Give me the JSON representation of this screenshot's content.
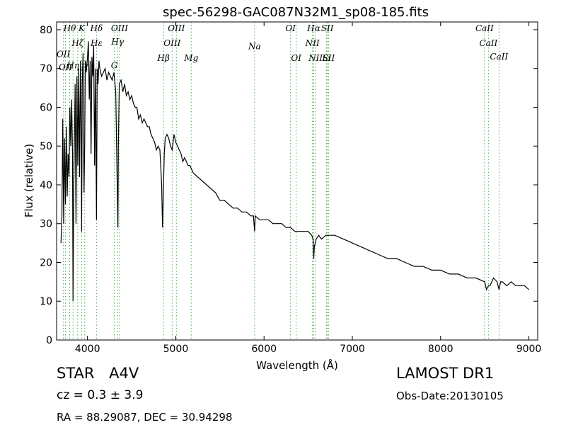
{
  "chart_data": {
    "type": "line",
    "title": "spec-56298-GAC087N32M1_sp08-185.fits",
    "xlabel": "Wavelength (Å)",
    "ylabel": "Flux (relative)",
    "xlim": [
      3650,
      9100
    ],
    "ylim": [
      0,
      82
    ],
    "xticks": [
      4000,
      5000,
      6000,
      7000,
      8000,
      9000
    ],
    "yticks": [
      0,
      10,
      20,
      30,
      40,
      50,
      60,
      70,
      80
    ],
    "grid": false,
    "legend": "none",
    "line_color": "#000000",
    "marker_color": "#4caf50",
    "series": [
      {
        "x": [
          3700,
          3710,
          3720,
          3730,
          3740,
          3750,
          3760,
          3770,
          3780,
          3790,
          3800,
          3810,
          3820,
          3830,
          3836,
          3845,
          3860,
          3870,
          3880,
          3890,
          3900,
          3910,
          3920,
          3930,
          3934,
          3940,
          3950,
          3960,
          3968,
          3975,
          3985,
          4000,
          4010,
          4020,
          4030,
          4040,
          4050,
          4060,
          4070,
          4080,
          4090,
          4102,
          4110,
          4120,
          4130,
          4140,
          4160,
          4180,
          4200,
          4220,
          4240,
          4260,
          4280,
          4300,
          4320,
          4330,
          4340,
          4345,
          4350,
          4360,
          4380,
          4400,
          4420,
          4440,
          4460,
          4480,
          4500,
          4520,
          4540,
          4560,
          4580,
          4600,
          4620,
          4640,
          4660,
          4680,
          4700,
          4720,
          4740,
          4760,
          4780,
          4800,
          4820,
          4840,
          4850,
          4861,
          4870,
          4880,
          4900,
          4920,
          4940,
          4960,
          4980,
          5000,
          5020,
          5040,
          5060,
          5080,
          5100,
          5120,
          5140,
          5160,
          5180,
          5200,
          5250,
          5300,
          5350,
          5400,
          5450,
          5500,
          5550,
          5600,
          5650,
          5700,
          5750,
          5800,
          5850,
          5880,
          5893,
          5900,
          5950,
          6000,
          6050,
          6100,
          6150,
          6200,
          6250,
          6300,
          6350,
          6400,
          6450,
          6500,
          6540,
          6555,
          6563,
          6570,
          6590,
          6620,
          6650,
          6700,
          6750,
          6800,
          6900,
          7000,
          7100,
          7200,
          7300,
          7400,
          7500,
          7600,
          7700,
          7800,
          7900,
          8000,
          8100,
          8200,
          8300,
          8400,
          8500,
          8520,
          8542,
          8560,
          8600,
          8640,
          8662,
          8680,
          8700,
          8750,
          8800,
          8850,
          8900,
          8950,
          9000
        ],
        "y": [
          25,
          32,
          57,
          30,
          52,
          35,
          55,
          37,
          48,
          42,
          60,
          50,
          62,
          48,
          10,
          40,
          66,
          30,
          68,
          45,
          70,
          42,
          72,
          48,
          28,
          66,
          74,
          38,
          50,
          72,
          69,
          73,
          77,
          62,
          72,
          48,
          73,
          68,
          76,
          45,
          70,
          31,
          70,
          66,
          72,
          70,
          68,
          69,
          70,
          67,
          69,
          68,
          67,
          69,
          64,
          50,
          35,
          29,
          50,
          66,
          67,
          64,
          66,
          63,
          64,
          62,
          63,
          61,
          60,
          60,
          57,
          58,
          56,
          57,
          56,
          55,
          55,
          53,
          52,
          51,
          49,
          50,
          49,
          40,
          29,
          40,
          48,
          52,
          53,
          52,
          50,
          49,
          53,
          51,
          50,
          49,
          48,
          46,
          47,
          46,
          45,
          45,
          44,
          43,
          42,
          41,
          40,
          39,
          38,
          36,
          36,
          35,
          34,
          34,
          33,
          33,
          32,
          32,
          28,
          32,
          31,
          31,
          31,
          30,
          30,
          30,
          29,
          29,
          28,
          28,
          28,
          28,
          27,
          26,
          21,
          24,
          26,
          27,
          26,
          27,
          27,
          27,
          26,
          25,
          24,
          23,
          22,
          21,
          21,
          20,
          19,
          19,
          18,
          18,
          17,
          17,
          16,
          16,
          15,
          13,
          14,
          14,
          16,
          15,
          13,
          15,
          15,
          14,
          15,
          14,
          14,
          14,
          13
        ]
      }
    ],
    "line_groups": [
      {
        "x": 3727,
        "labels": [
          "OII"
        ],
        "y": 73.0
      },
      {
        "x": 3750,
        "labels": [
          "OII"
        ],
        "y": 69.6
      },
      {
        "x": 3798,
        "labels": [
          "Hθ"
        ],
        "y": 79.6
      },
      {
        "x": 3836,
        "labels": [
          "Hη"
        ],
        "y": 70.0
      },
      {
        "x": 3889,
        "labels": [
          "Hζ"
        ],
        "y": 75.8
      },
      {
        "x": 3934,
        "labels": [
          "K"
        ],
        "y": 79.6
      },
      {
        "x": 3968,
        "labels": [
          "H"
        ],
        "y": 69.6
      },
      {
        "x": 4102,
        "labels": [
          "Hδ"
        ],
        "y": 79.6
      },
      {
        "x": 4102,
        "labels": [
          "Hε"
        ],
        "y": 75.8
      },
      {
        "x": 4304,
        "labels": [
          "G"
        ],
        "y": 70.0
      },
      {
        "x": 4341,
        "labels": [
          "Hγ"
        ],
        "y": 76.2
      },
      {
        "x": 4363,
        "labels": [
          "OIII"
        ],
        "y": 79.6
      },
      {
        "x": 4861,
        "labels": [
          "Hβ"
        ],
        "y": 72.0
      },
      {
        "x": 4959,
        "labels": [
          "OIII"
        ],
        "y": 75.8
      },
      {
        "x": 5007,
        "labels": [
          "OIII"
        ],
        "y": 79.6
      },
      {
        "x": 5175,
        "labels": [
          "Mg"
        ],
        "y": 72.0
      },
      {
        "x": 5893,
        "labels": [
          "Na"
        ],
        "y": 75.0
      },
      {
        "x": 6300,
        "labels": [
          "OI"
        ],
        "y": 79.6
      },
      {
        "x": 6364,
        "labels": [
          "OI"
        ],
        "y": 72.0
      },
      {
        "x": 6548,
        "labels": [
          "NII"
        ],
        "y": 75.8
      },
      {
        "x": 6563,
        "labels": [
          "Hα"
        ],
        "y": 79.6
      },
      {
        "x": 6584,
        "labels": [
          "NII"
        ],
        "y": 72.0
      },
      {
        "x": 6717,
        "labels": [
          "SII"
        ],
        "y": 79.6
      },
      {
        "x": 6731,
        "labels": [
          "SII"
        ],
        "y": 72.0
      },
      {
        "x": 6708,
        "labels": [
          "Li"
        ],
        "y": 72.0
      },
      {
        "x": 8498,
        "labels": [
          "CaII"
        ],
        "y": 79.6
      },
      {
        "x": 8542,
        "labels": [
          "CaII"
        ],
        "y": 75.8
      },
      {
        "x": 8662,
        "labels": [
          "CaII"
        ],
        "y": 72.3
      }
    ]
  },
  "info": {
    "object_class": "STAR",
    "subclass": "A4V",
    "redshift": "cz = 0.3 ± 3.9",
    "coords": "RA = 88.29087, DEC = 30.94298",
    "survey": "LAMOST DR1",
    "obs_date": "Obs-Date:20130105"
  }
}
